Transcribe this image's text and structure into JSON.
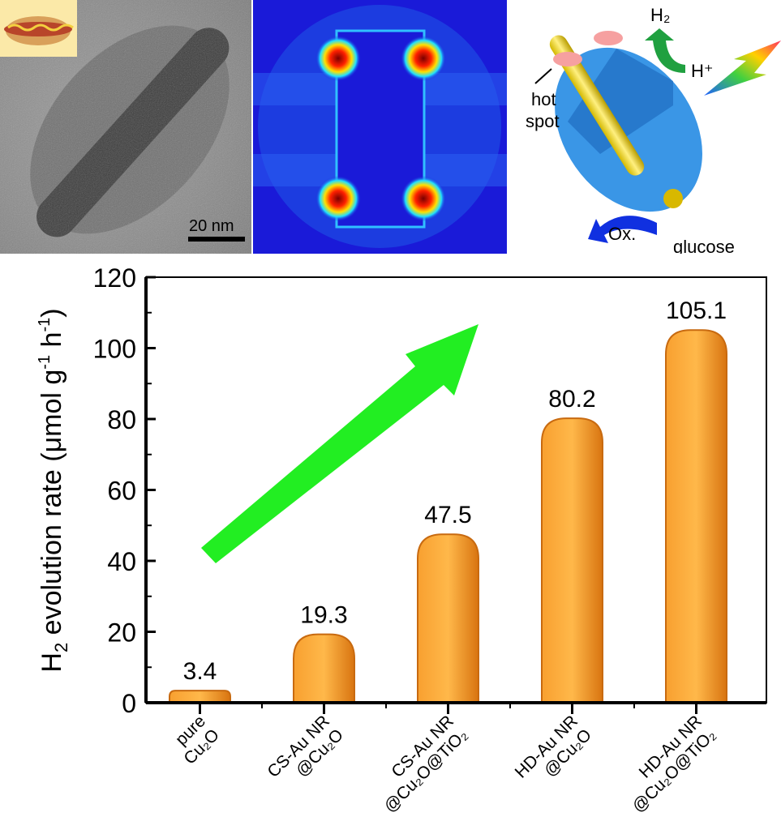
{
  "tem_panel": {
    "scale_bar_label": "20 nm"
  },
  "schematic": {
    "label_h2": "H₂",
    "label_hplus": "H⁺",
    "label_hot_spot_line1": "hot",
    "label_hot_spot_line2": "spot",
    "label_ox": "Ox.",
    "label_glucose": "glucose"
  },
  "colors": {
    "bar": "#f0901e",
    "bar_dark": "#c86a10",
    "arrow": "#22ee22",
    "axis": "#000000"
  },
  "chart_data": {
    "type": "bar",
    "title": "",
    "xlabel": "",
    "ylabel": "H2 evolution rate (μmol g-1 h-1)",
    "ylabel_parts": {
      "h": "H",
      "sub2": "2",
      "mid": " evolution rate (μmol g",
      "sup1": "-1",
      "h_unit": " h",
      "sup2": "-1",
      "close": ")"
    },
    "ylim": [
      0,
      120
    ],
    "yticks": [
      0,
      20,
      40,
      60,
      80,
      100,
      120
    ],
    "categories": [
      [
        "pure",
        "Cu₂O"
      ],
      [
        "CS-Au NR",
        "@Cu₂O"
      ],
      [
        "CS-Au NR",
        "@Cu₂O@TiO₂"
      ],
      [
        "HD-Au NR",
        "@Cu₂O"
      ],
      [
        "HD-Au NR",
        "@Cu₂O@TiO₂"
      ]
    ],
    "values": [
      3.4,
      19.3,
      47.5,
      80.2,
      105.1
    ],
    "data_labels": [
      "3.4",
      "19.3",
      "47.5",
      "80.2",
      "105.1"
    ],
    "annotation": "green trend arrow (increasing)"
  }
}
